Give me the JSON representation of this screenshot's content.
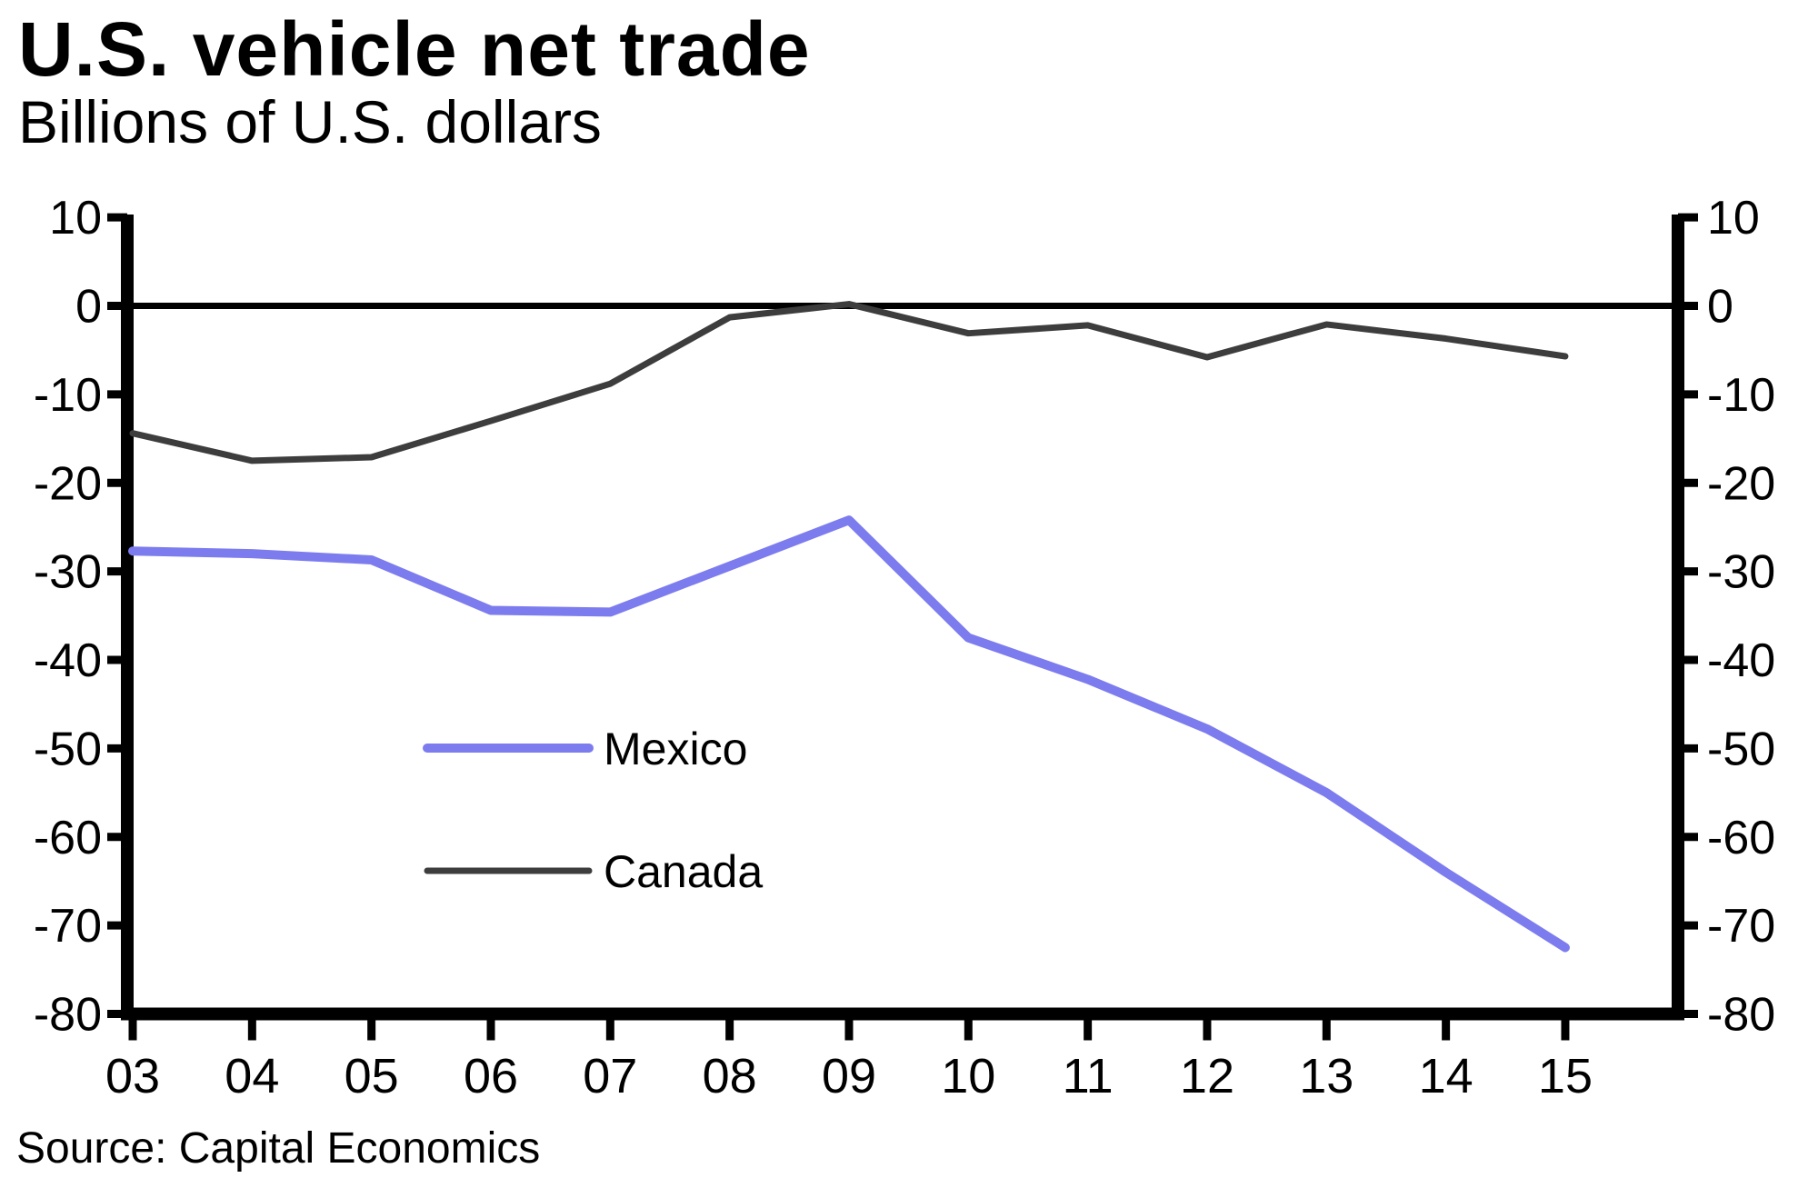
{
  "header": {
    "title": "U.S. vehicle net trade",
    "subtitle": "Billions of U.S. dollars"
  },
  "footer": {
    "source": "Source: Capital Economics"
  },
  "chart_data": {
    "type": "line",
    "title": "U.S. vehicle net trade",
    "subtitle": "Billions of U.S. dollars",
    "categories": [
      "03",
      "04",
      "05",
      "06",
      "07",
      "08",
      "09",
      "10",
      "11",
      "12",
      "13",
      "14",
      "15"
    ],
    "series": [
      {
        "name": "Mexico",
        "color": "#7C7CEF",
        "stroke_width": 10,
        "values": [
          -27.7,
          -28.0,
          -28.7,
          -34.4,
          -34.6,
          -29.4,
          -24.2,
          -37.5,
          -42.2,
          -47.8,
          -55.0,
          -64.0,
          -72.5
        ]
      },
      {
        "name": "Canada",
        "color": "#3D3D3D",
        "stroke_width": 7,
        "values": [
          -14.4,
          -17.5,
          -17.1,
          -13.0,
          -8.8,
          -1.3,
          0.2,
          -3.1,
          -2.2,
          -5.8,
          -2.1,
          -3.7,
          -5.7
        ]
      }
    ],
    "ylim": [
      -80,
      10
    ],
    "yticks": [
      10,
      0,
      -10,
      -20,
      -30,
      -40,
      -50,
      -60,
      -70,
      -80
    ],
    "y_axis_sides": "both",
    "zero_line": true,
    "grid": false,
    "legend_position": "inside-left",
    "axis_color": "#000000",
    "source": "Source: Capital Economics"
  }
}
